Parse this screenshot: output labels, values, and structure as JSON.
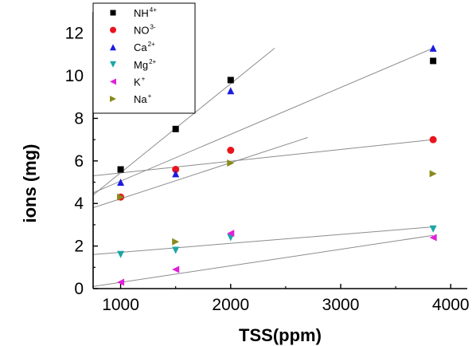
{
  "chart_data": {
    "type": "scatter",
    "title": "",
    "xlabel": "TSS(ppm)",
    "ylabel": "ions (mg)",
    "xlim": [
      750,
      4150
    ],
    "ylim": [
      0,
      13
    ],
    "xticks": [
      1000,
      2000,
      3000,
      4000
    ],
    "yticks": [
      0,
      2,
      4,
      6,
      8,
      10,
      12
    ],
    "grid": false,
    "legend_position": "top-left",
    "series": [
      {
        "name": "NH",
        "sup": "4+",
        "marker": "square",
        "color": "#000000",
        "x": [
          1000,
          1500,
          2000,
          3840
        ],
        "y": [
          5.6,
          7.5,
          9.8,
          10.7
        ]
      },
      {
        "name": "NO",
        "sup": "3-",
        "marker": "circle",
        "color": "#e8141c",
        "x": [
          1000,
          1500,
          2000,
          3840
        ],
        "y": [
          4.3,
          5.6,
          6.5,
          7.0
        ]
      },
      {
        "name": "Ca",
        "sup": "2+",
        "marker": "triangle-up",
        "color": "#1c1ce0",
        "x": [
          1000,
          1500,
          2000,
          3840
        ],
        "y": [
          5.0,
          5.4,
          9.3,
          11.3
        ]
      },
      {
        "name": "Mg",
        "sup": "2+",
        "marker": "triangle-down",
        "color": "#1aa6a6",
        "x": [
          1000,
          1500,
          2000,
          3840
        ],
        "y": [
          1.6,
          1.8,
          2.4,
          2.8
        ]
      },
      {
        "name": "K",
        "sup": "+",
        "marker": "triangle-left",
        "color": "#e020d8",
        "x": [
          1000,
          1500,
          2000,
          3840
        ],
        "y": [
          0.3,
          0.9,
          2.6,
          2.4
        ]
      },
      {
        "name": "Na",
        "sup": "+",
        "marker": "triangle-right",
        "color": "#8a8a1c",
        "x": [
          1000,
          1500,
          2000,
          3840
        ],
        "y": [
          4.3,
          2.2,
          5.9,
          5.4
        ]
      }
    ],
    "trendlines": [
      {
        "x": [
          750,
          2400
        ],
        "y": [
          4.4,
          11.3
        ]
      },
      {
        "x": [
          750,
          3840
        ],
        "y": [
          4.5,
          11.3
        ]
      },
      {
        "x": [
          750,
          2700
        ],
        "y": [
          3.8,
          7.1
        ]
      },
      {
        "x": [
          750,
          3840
        ],
        "y": [
          5.3,
          7.0
        ]
      },
      {
        "x": [
          750,
          3840
        ],
        "y": [
          1.6,
          2.9
        ]
      },
      {
        "x": [
          750,
          3840
        ],
        "y": [
          0.1,
          2.5
        ]
      }
    ]
  }
}
